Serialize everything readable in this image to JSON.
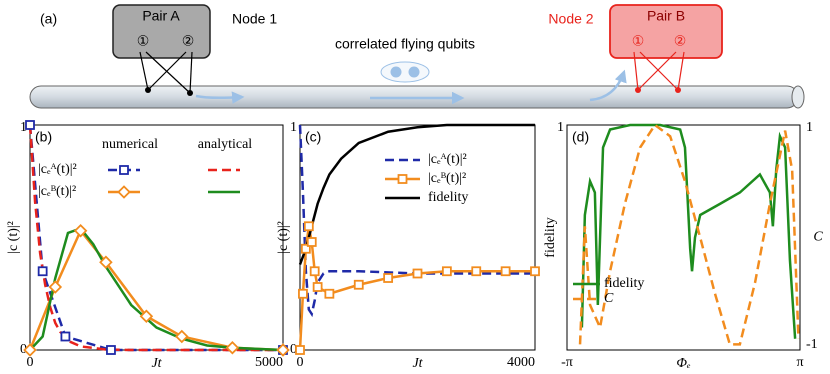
{
  "diagram": {
    "label": "(a)",
    "pair_a": "Pair A",
    "node_1": "Node 1",
    "pair_b": "Pair B",
    "node_2": "Node 2",
    "qubit_1": "①",
    "qubit_2": "②",
    "caption": "correlated flying qubits"
  },
  "chart_data": [
    {
      "type": "line",
      "label": "(b)",
      "xlabel": "Jt",
      "ylabel": "|c (t)|²",
      "xlim": [
        0,
        5000
      ],
      "xticks": [
        0,
        5000
      ],
      "ylim": [
        0,
        1
      ],
      "yticks": [
        0,
        1
      ],
      "legend_columns": [
        "numerical",
        "analytical"
      ],
      "series": [
        {
          "name": "|cₑᴬ(t)|²",
          "color": "#1f2aa8",
          "dash": true,
          "marker": "square",
          "x": [
            0,
            250,
            700,
            1600,
            5000
          ],
          "values": [
            1,
            0.35,
            0.06,
            0,
            0
          ]
        },
        {
          "name": "|cₑᴮ(t)|²",
          "color": "#f28c1e",
          "dash": false,
          "marker": "diamond",
          "x": [
            0,
            500,
            1000,
            1500,
            2300,
            3000,
            4000,
            5000
          ],
          "values": [
            0,
            0.28,
            0.53,
            0.39,
            0.15,
            0.06,
            0.01,
            0
          ]
        },
        {
          "name": "|cₑᴬ(t)|²",
          "color": "#e8231c",
          "dash": true,
          "marker": null,
          "x": [
            0,
            100,
            200,
            300,
            400,
            500,
            600,
            800,
            1000,
            1500,
            2000,
            3000,
            4000,
            5000
          ],
          "values": [
            1,
            0.66,
            0.43,
            0.29,
            0.19,
            0.12,
            0.08,
            0.036,
            0.016,
            0.002,
            0,
            0,
            0,
            0
          ]
        },
        {
          "name": "|cₑᴮ(t)|²",
          "color": "#1e8c1e",
          "dash": false,
          "marker": null,
          "x": [
            0,
            250,
            500,
            750,
            1000,
            1250,
            1500,
            2000,
            2500,
            3000,
            3500,
            4000,
            5000
          ],
          "values": [
            0,
            0.06,
            0.32,
            0.52,
            0.54,
            0.47,
            0.37,
            0.2,
            0.1,
            0.05,
            0.02,
            0.01,
            0
          ]
        }
      ]
    },
    {
      "type": "line",
      "label": "(c)",
      "xlabel": "Jt",
      "ylabel": "|c (t)|²",
      "xlim": [
        0,
        4000
      ],
      "xticks": [
        0,
        4000
      ],
      "ylim": [
        0,
        1
      ],
      "yticks": [
        0,
        1
      ],
      "series": [
        {
          "name": "|cₑᴬ(t)|²",
          "color": "#1f2aa8",
          "dash": true,
          "marker": null,
          "x": [
            0,
            50,
            100,
            150,
            200,
            250,
            300,
            400,
            500,
            700,
            1000,
            2000,
            3000,
            4000
          ],
          "values": [
            1,
            0.7,
            0.35,
            0.18,
            0.16,
            0.22,
            0.3,
            0.34,
            0.35,
            0.35,
            0.35,
            0.34,
            0.34,
            0.34
          ]
        },
        {
          "name": "|cₑᴮ(t)|²",
          "color": "#f28c1e",
          "dash": false,
          "marker": "square",
          "x": [
            0,
            50,
            100,
            150,
            200,
            250,
            300,
            500,
            1000,
            1500,
            2000,
            2500,
            3000,
            3500,
            4000
          ],
          "values": [
            0,
            0.25,
            0.45,
            0.55,
            0.48,
            0.35,
            0.28,
            0.25,
            0.29,
            0.32,
            0.34,
            0.35,
            0.35,
            0.35,
            0.35
          ]
        },
        {
          "name": "fidelity",
          "color": "#000000",
          "dash": false,
          "marker": null,
          "x": [
            0,
            100,
            200,
            300,
            400,
            500,
            700,
            1000,
            1500,
            2000,
            2500,
            3000,
            4000
          ],
          "values": [
            0.38,
            0.45,
            0.55,
            0.65,
            0.72,
            0.78,
            0.85,
            0.92,
            0.97,
            0.99,
            1,
            1,
            1
          ]
        }
      ]
    },
    {
      "type": "line",
      "label": "(d)",
      "xlabel": "Φₑ",
      "ylabel": "fidelity",
      "y2label": "C",
      "xlim": [
        -3.1416,
        3.1416
      ],
      "xticks": [
        {
          "value": -3.1416,
          "label": "-π"
        },
        {
          "value": 3.1416,
          "label": "π"
        }
      ],
      "ylim": [
        0,
        1
      ],
      "yticks": [
        1
      ],
      "y2lim": [
        -1,
        1
      ],
      "y2ticks": [
        -1,
        1
      ],
      "series": [
        {
          "name": "fidelity",
          "color": "#1e8c1e",
          "dash": false,
          "marker": null,
          "x": [
            -2.74,
            -2.66,
            -2.52,
            -2.39,
            -2.31,
            -2.17,
            -1.98,
            -1.44,
            -0.63,
            -0.09,
            0.04,
            0.18,
            0.23,
            0.31,
            0.45,
            0.99,
            1.52,
            2.06,
            2.33,
            2.41,
            2.5,
            2.6,
            2.74,
            2.87,
            3.01
          ],
          "values": [
            0.1,
            0.6,
            0.75,
            0.7,
            0.2,
            0.9,
            0.98,
            1,
            1,
            0.98,
            0.9,
            0.45,
            0.35,
            0.5,
            0.6,
            0.65,
            0.7,
            0.78,
            0.7,
            0.55,
            0.8,
            0.95,
            0.9,
            0.4,
            0.05
          ]
        },
        {
          "name": "C",
          "color": "#f28c1e",
          "dash": true,
          "marker": null,
          "axis": "y2",
          "x": [
            -2.79,
            -2.66,
            -2.52,
            -2.25,
            -1.98,
            -1.58,
            -1.17,
            -0.77,
            -0.36,
            0.04,
            0.45,
            0.85,
            1.25,
            1.52,
            1.93,
            2.33,
            2.74,
            2.93,
            3.1
          ],
          "values": [
            -0.95,
            0.1,
            -0.6,
            -0.8,
            -0.3,
            0.3,
            0.8,
            1,
            0.9,
            0.5,
            0,
            -0.5,
            -0.95,
            -0.95,
            -0.4,
            0.3,
            0.95,
            0.6,
            -0.9
          ]
        }
      ]
    }
  ]
}
